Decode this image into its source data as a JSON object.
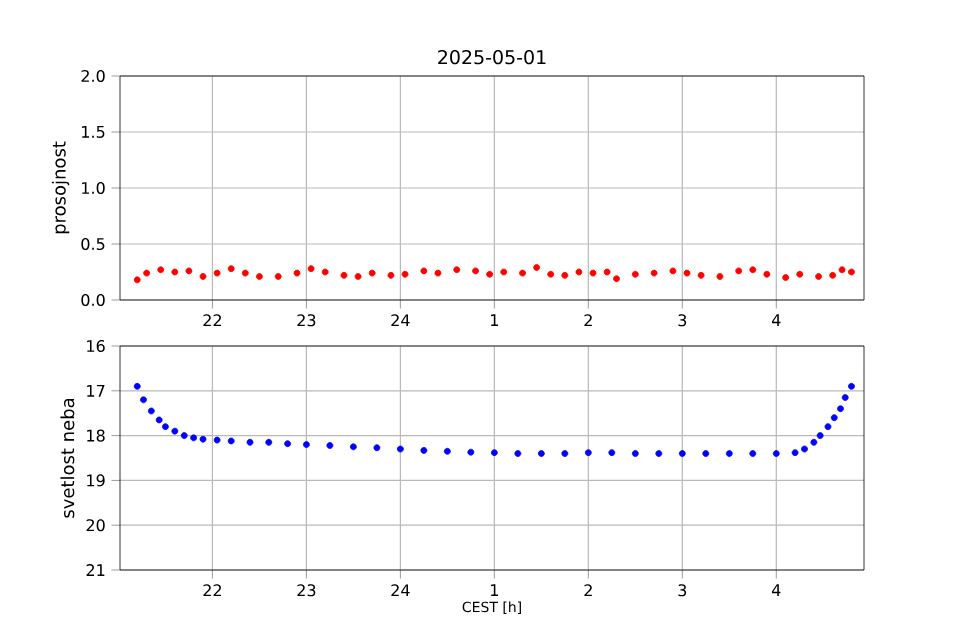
{
  "chart_data": [
    {
      "type": "scatter",
      "title": "2025-05-01",
      "ylabel": "prosojnost",
      "grid": true,
      "xlim": [
        "2025-05-01T21:01",
        "2025-05-02T04:56"
      ],
      "ylim": [
        0,
        2.0
      ],
      "xticks": [
        {
          "value": "2025-05-01T22:00",
          "label": "22"
        },
        {
          "value": "2025-05-01T23:00",
          "label": "23"
        },
        {
          "value": "2025-05-02T00:00",
          "label": "24"
        },
        {
          "value": "2025-05-02T01:00",
          "label": "1"
        },
        {
          "value": "2025-05-02T02:00",
          "label": "2"
        },
        {
          "value": "2025-05-02T03:00",
          "label": "3"
        },
        {
          "value": "2025-05-02T04:00",
          "label": "4"
        }
      ],
      "yticks": [
        {
          "value": 0,
          "label": "0.0"
        },
        0.5,
        {
          "value": 1,
          "label": "1.0"
        },
        1.5,
        {
          "value": 2,
          "label": "2.0"
        }
      ],
      "series": [
        {
          "color": "#ff0000",
          "x": [
            "2025-05-01T21:12",
            "2025-05-01T21:18",
            "2025-05-01T21:27",
            "2025-05-01T21:36",
            "2025-05-01T21:45",
            "2025-05-01T21:54",
            "2025-05-01T22:03",
            "2025-05-01T22:12",
            "2025-05-01T22:21",
            "2025-05-01T22:30",
            "2025-05-01T22:42",
            "2025-05-01T22:54",
            "2025-05-01T23:03",
            "2025-05-01T23:12",
            "2025-05-01T23:24",
            "2025-05-01T23:33",
            "2025-05-01T23:42",
            "2025-05-01T23:54",
            "2025-05-02T00:03",
            "2025-05-02T00:15",
            "2025-05-02T00:24",
            "2025-05-02T00:36",
            "2025-05-02T00:48",
            "2025-05-02T00:57",
            "2025-05-02T01:06",
            "2025-05-02T01:18",
            "2025-05-02T01:27",
            "2025-05-02T01:36",
            "2025-05-02T01:45",
            "2025-05-02T01:54",
            "2025-05-02T02:03",
            "2025-05-02T02:12",
            "2025-05-02T02:18",
            "2025-05-02T02:30",
            "2025-05-02T02:42",
            "2025-05-02T02:54",
            "2025-05-02T03:03",
            "2025-05-02T03:12",
            "2025-05-02T03:24",
            "2025-05-02T03:36",
            "2025-05-02T03:45",
            "2025-05-02T03:54",
            "2025-05-02T04:06",
            "2025-05-02T04:15",
            "2025-05-02T04:27",
            "2025-05-02T04:36",
            "2025-05-02T04:42",
            "2025-05-02T04:48"
          ],
          "values": [
            0.18,
            0.24,
            0.27,
            0.25,
            0.26,
            0.21,
            0.24,
            0.28,
            0.24,
            0.21,
            0.21,
            0.24,
            0.28,
            0.25,
            0.22,
            0.21,
            0.24,
            0.22,
            0.23,
            0.26,
            0.24,
            0.27,
            0.26,
            0.23,
            0.25,
            0.24,
            0.29,
            0.23,
            0.22,
            0.25,
            0.24,
            0.25,
            0.19,
            0.23,
            0.24,
            0.26,
            0.24,
            0.22,
            0.21,
            0.26,
            0.27,
            0.23,
            0.2,
            0.23,
            0.21,
            0.22,
            0.27,
            0.25
          ]
        }
      ]
    },
    {
      "type": "scatter",
      "xlabel": "CEST [h]",
      "ylabel": "svetlost neba",
      "grid": true,
      "xlim": [
        "2025-05-01T21:01",
        "2025-05-02T04:56"
      ],
      "ylim": [
        21,
        16
      ],
      "xticks": [
        {
          "value": "2025-05-01T22:00",
          "label": "22"
        },
        {
          "value": "2025-05-01T23:00",
          "label": "23"
        },
        {
          "value": "2025-05-02T00:00",
          "label": "24"
        },
        {
          "value": "2025-05-02T01:00",
          "label": "1"
        },
        {
          "value": "2025-05-02T02:00",
          "label": "2"
        },
        {
          "value": "2025-05-02T03:00",
          "label": "3"
        },
        {
          "value": "2025-05-02T04:00",
          "label": "4"
        }
      ],
      "yticks": [
        16,
        17,
        18,
        19,
        20,
        21
      ],
      "series": [
        {
          "color": "#0000ff",
          "x": [
            "2025-05-01T21:12",
            "2025-05-01T21:16",
            "2025-05-01T21:21",
            "2025-05-01T21:26",
            "2025-05-01T21:30",
            "2025-05-01T21:36",
            "2025-05-01T21:42",
            "2025-05-01T21:48",
            "2025-05-01T21:54",
            "2025-05-01T22:03",
            "2025-05-01T22:12",
            "2025-05-01T22:24",
            "2025-05-01T22:36",
            "2025-05-01T22:48",
            "2025-05-01T23:00",
            "2025-05-01T23:15",
            "2025-05-01T23:30",
            "2025-05-01T23:45",
            "2025-05-02T00:00",
            "2025-05-02T00:15",
            "2025-05-02T00:30",
            "2025-05-02T00:45",
            "2025-05-02T01:00",
            "2025-05-02T01:15",
            "2025-05-02T01:30",
            "2025-05-02T01:45",
            "2025-05-02T02:00",
            "2025-05-02T02:15",
            "2025-05-02T02:30",
            "2025-05-02T02:45",
            "2025-05-02T03:00",
            "2025-05-02T03:15",
            "2025-05-02T03:30",
            "2025-05-02T03:45",
            "2025-05-02T04:00",
            "2025-05-02T04:12",
            "2025-05-02T04:18",
            "2025-05-02T04:24",
            "2025-05-02T04:28",
            "2025-05-02T04:33",
            "2025-05-02T04:37",
            "2025-05-02T04:41",
            "2025-05-02T04:44",
            "2025-05-02T04:48"
          ],
          "values": [
            16.9,
            17.2,
            17.45,
            17.65,
            17.8,
            17.9,
            18.0,
            18.05,
            18.08,
            18.1,
            18.12,
            18.15,
            18.15,
            18.18,
            18.2,
            18.22,
            18.25,
            18.27,
            18.3,
            18.33,
            18.35,
            18.37,
            18.38,
            18.4,
            18.4,
            18.4,
            18.38,
            18.38,
            18.4,
            18.4,
            18.4,
            18.4,
            18.4,
            18.4,
            18.4,
            18.38,
            18.3,
            18.15,
            18.0,
            17.8,
            17.6,
            17.4,
            17.15,
            16.9
          ]
        }
      ]
    }
  ]
}
